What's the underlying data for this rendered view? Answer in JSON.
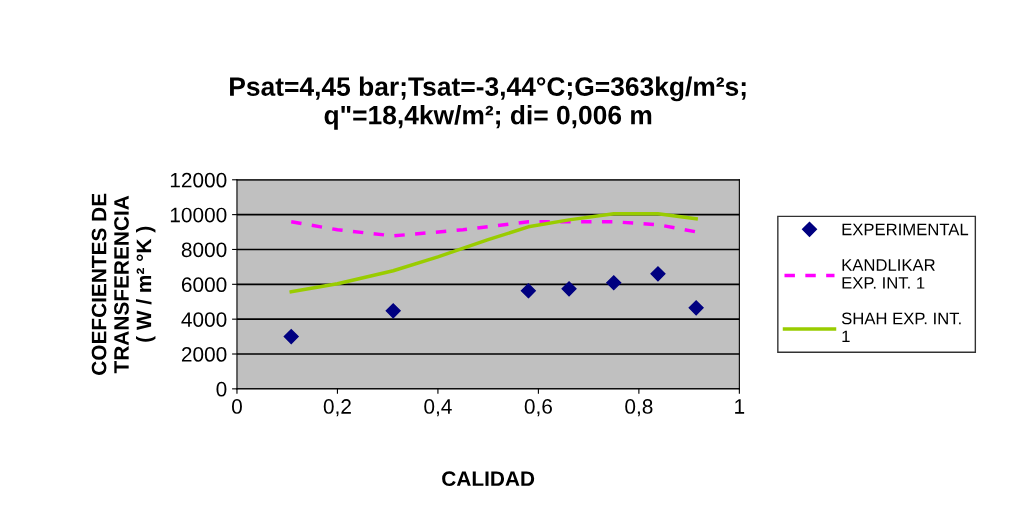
{
  "chart_data": {
    "type": "scatter",
    "title": "Psat=4,45 bar;Tsat=-3,44°C;G=363kg/m²s;\nq\"=18,4kw/m²; di= 0,006 m",
    "xlabel": "CALIDAD",
    "ylabel": "COEFCIENTES DE\nTRANSFERENCIA\n( W / m² °K )",
    "series": [
      {
        "name": "EXPERIMENTAL",
        "color": "#000080",
        "marker": "diamond",
        "x": [
          0.108,
          0.311,
          0.58,
          0.661,
          0.75,
          0.838,
          0.914
        ],
        "values": [
          3000,
          4480,
          5630,
          5740,
          6090,
          6600,
          4650
        ]
      },
      {
        "name": "KANDLIKAR\nEXP. INT. 1",
        "type": "line",
        "color": "#ff00ff",
        "line_style": "dashed",
        "marker": "none",
        "x": [
          0.108,
          0.2,
          0.311,
          0.45,
          0.58,
          0.661,
          0.75,
          0.838,
          0.914
        ],
        "values": [
          9590,
          9130,
          8780,
          9130,
          9590,
          9590,
          9590,
          9420,
          9010
        ]
      },
      {
        "name": "SHAH EXP. INT.\n1",
        "type": "line",
        "color": "#99cc00",
        "line_style": "solid",
        "marker": "none",
        "x": [
          0.108,
          0.2,
          0.311,
          0.4,
          0.5,
          0.58,
          0.661,
          0.75,
          0.838,
          0.914
        ],
        "values": [
          5570,
          6030,
          6780,
          7580,
          8560,
          9300,
          9700,
          10050,
          10050,
          9760
        ]
      }
    ],
    "xlim": [
      0,
      1
    ],
    "xticks": [
      0,
      {
        "value": 0.2,
        "label": "0,2"
      },
      {
        "value": 0.4,
        "label": "0,4"
      },
      {
        "value": 0.6,
        "label": "0,6"
      },
      {
        "value": 0.8,
        "label": "0,8"
      },
      1
    ],
    "ylim": [
      0,
      12000
    ],
    "yticks": [
      0,
      2000,
      4000,
      6000,
      8000,
      10000,
      12000
    ],
    "grid": "y",
    "legend": "right"
  }
}
